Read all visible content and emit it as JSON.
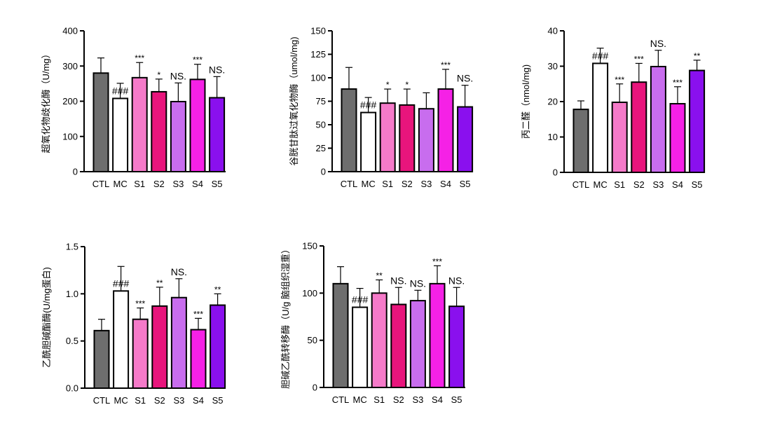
{
  "figure_title": "",
  "chart_data": [
    {
      "type": "bar",
      "ylabel": "超氧化物歧化酶（U/mg）",
      "ylim": [
        0,
        400
      ],
      "yticks": [
        "0",
        "100",
        "200",
        "300",
        "400"
      ],
      "categories": [
        "CTL",
        "MC",
        "S1",
        "S2",
        "S3",
        "S4",
        "S5"
      ],
      "values": [
        280,
        208,
        267,
        227,
        199,
        262,
        210
      ],
      "errors": [
        43,
        43,
        43,
        36,
        53,
        43,
        60
      ],
      "annotations": [
        "",
        "###",
        "***",
        "*",
        "NS.",
        "***",
        "NS."
      ],
      "colors": [
        "#6e6e6e",
        "#ffffff",
        "#f57ac9",
        "#e8157c",
        "#c86dee",
        "#f521e6",
        "#8a10ee"
      ]
    },
    {
      "type": "bar",
      "ylabel": "谷胱甘肽过氧化物酶（umol/mg)",
      "ylim": [
        0,
        150
      ],
      "yticks": [
        "0",
        "25",
        "50",
        "75",
        "100",
        "125",
        "150"
      ],
      "categories": [
        "CTL",
        "MC",
        "S1",
        "S2",
        "S3",
        "S4",
        "S5"
      ],
      "values": [
        88,
        63,
        73,
        71,
        67,
        88,
        69
      ],
      "errors": [
        23,
        16,
        15,
        17,
        17,
        21,
        23
      ],
      "annotations": [
        "",
        "###",
        "*",
        "*",
        "",
        "***",
        "NS."
      ],
      "colors": [
        "#6e6e6e",
        "#ffffff",
        "#f57ac9",
        "#e8157c",
        "#c86dee",
        "#f521e6",
        "#8a10ee"
      ]
    },
    {
      "type": "bar",
      "ylabel": "丙二醛（nmol/mg)",
      "ylim": [
        0,
        40
      ],
      "yticks": [
        "0",
        "10",
        "20",
        "30",
        "40"
      ],
      "categories": [
        "CTL",
        "MC",
        "S1",
        "S2",
        "S3",
        "S4",
        "S5"
      ],
      "values": [
        17.8,
        30.8,
        19.8,
        25.5,
        29.9,
        19.4,
        28.8
      ],
      "errors": [
        2.4,
        4.3,
        5.2,
        5.3,
        4.6,
        4.8,
        2.9
      ],
      "annotations": [
        "",
        "###",
        "***",
        "***",
        "NS.",
        "***",
        "**"
      ],
      "colors": [
        "#6e6e6e",
        "#ffffff",
        "#f57ac9",
        "#e8157c",
        "#c86dee",
        "#f521e6",
        "#8a10ee"
      ]
    },
    {
      "type": "bar",
      "ylabel": "乙酰胆碱酯酶(U/mg蛋白)",
      "ylim": [
        0,
        1.5
      ],
      "yticks": [
        "0.0",
        "0.5",
        "1.0",
        "1.5"
      ],
      "categories": [
        "CTL",
        "MC",
        "S1",
        "S2",
        "S3",
        "S4",
        "S5"
      ],
      "values": [
        0.61,
        1.03,
        0.73,
        0.87,
        0.96,
        0.62,
        0.88
      ],
      "errors": [
        0.12,
        0.26,
        0.12,
        0.2,
        0.2,
        0.12,
        0.12
      ],
      "annotations": [
        "",
        "###",
        "***",
        "**",
        "NS.",
        "***",
        "**"
      ],
      "colors": [
        "#6e6e6e",
        "#ffffff",
        "#f57ac9",
        "#e8157c",
        "#c86dee",
        "#f521e6",
        "#8a10ee"
      ]
    },
    {
      "type": "bar",
      "ylabel": "胆碱乙酰转移酶（U/g 脑组织湿重）",
      "ylim": [
        0,
        150
      ],
      "yticks": [
        "0",
        "50",
        "100",
        "150"
      ],
      "categories": [
        "CTL",
        "MC",
        "S1",
        "S2",
        "S3",
        "S4",
        "S5"
      ],
      "values": [
        110,
        85,
        100,
        88,
        92,
        110,
        86
      ],
      "errors": [
        18,
        20,
        14,
        18,
        11,
        19,
        20
      ],
      "annotations": [
        "",
        "###",
        "**",
        "NS.",
        "NS.",
        "***",
        "NS."
      ],
      "colors": [
        "#6e6e6e",
        "#ffffff",
        "#f57ac9",
        "#e8157c",
        "#c86dee",
        "#f521e6",
        "#8a10ee"
      ]
    }
  ]
}
